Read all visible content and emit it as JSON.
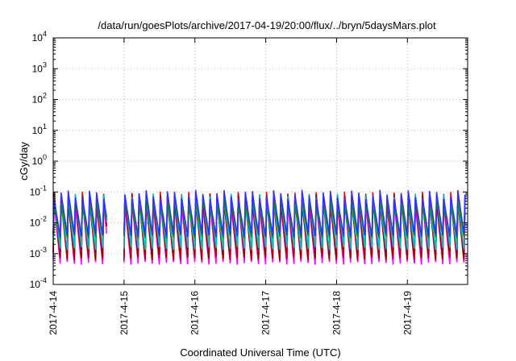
{
  "chart_data": {
    "type": "line",
    "title": "/data/run/goesPlots/archive/2017-04-19/20:00/flux/../bryn/5daysMars.plot",
    "xlabel": "Coordinated Universal Time (UTC)",
    "ylabel": "cGy/day",
    "yscale": "log",
    "ylim": [
      0.0001,
      10000
    ],
    "y_ticks": [
      {
        "base": "10",
        "exp": "-4"
      },
      {
        "base": "10",
        "exp": "-3"
      },
      {
        "base": "10",
        "exp": "-2"
      },
      {
        "base": "10",
        "exp": "-1"
      },
      {
        "base": "10",
        "exp": "0"
      },
      {
        "base": "10",
        "exp": "1"
      },
      {
        "base": "10",
        "exp": "2"
      },
      {
        "base": "10",
        "exp": "3"
      },
      {
        "base": "10",
        "exp": "4"
      }
    ],
    "x_ticks": [
      "2017-4-14",
      "2017-4-15",
      "2017-4-16",
      "2017-4-17",
      "2017-4-18",
      "2017-4-19"
    ],
    "xlim_days": [
      0,
      5.85
    ],
    "grid": true,
    "pattern": {
      "oscillations_per_day": 10,
      "gap_day_range": [
        0.78,
        0.98
      ]
    },
    "series": [
      {
        "color": "#ff00ff",
        "peak": 0.05,
        "trough": 0.0005
      },
      {
        "color": "#ff0000",
        "peak": 0.07,
        "trough": 0.0008
      },
      {
        "color": "#a00000",
        "peak": 0.06,
        "trough": 0.0007
      },
      {
        "color": "#00c0c0",
        "peak": 0.06,
        "trough": 0.0015
      },
      {
        "color": "#00a000",
        "peak": 0.045,
        "trough": 0.0035
      },
      {
        "color": "#3030ff",
        "peak": 0.08,
        "trough": 0.004
      }
    ]
  }
}
